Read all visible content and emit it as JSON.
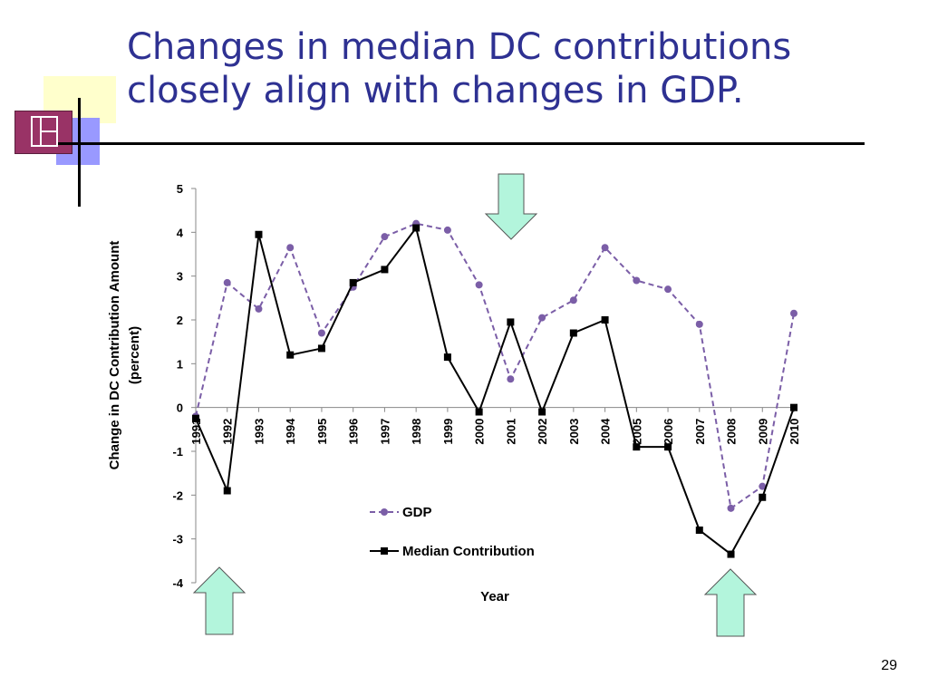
{
  "slide": {
    "title_lines": [
      "Changes in median DC contributions",
      "closely align with changes in GDP."
    ],
    "page_number": "29"
  },
  "colors": {
    "title": "#2e3192",
    "gdp_series": "#7b5ea7",
    "median_series": "#000000",
    "arrow_fill": "#b3f5dc",
    "deco_yellow": "#ffffcc",
    "deco_maroon": "#993366",
    "deco_blue": "#9999ff"
  },
  "chart_data": {
    "type": "line",
    "title": "",
    "xlabel": "Year",
    "ylabel_lines": [
      "Change in DC Contribution Amount",
      "(percent)"
    ],
    "ylim": [
      -4,
      5
    ],
    "yticks": [
      "5",
      "4",
      "3",
      "2",
      "1",
      "0",
      "-1",
      "-2",
      "-3",
      "-4"
    ],
    "grid": false,
    "legend_placement": "lower-center",
    "categories": [
      "1991",
      "1992",
      "1993",
      "1994",
      "1995",
      "1996",
      "1997",
      "1998",
      "1999",
      "2000",
      "2001",
      "2002",
      "2003",
      "2004",
      "2005",
      "2006",
      "2007",
      "2008",
      "2009",
      "2010"
    ],
    "series": [
      {
        "name": "GDP",
        "style": "dashed-circle",
        "values": [
          -0.2,
          2.85,
          2.25,
          3.65,
          1.7,
          2.75,
          3.9,
          4.2,
          4.05,
          2.8,
          0.65,
          2.05,
          2.45,
          3.65,
          2.9,
          2.7,
          1.9,
          -2.3,
          -1.8,
          2.15
        ]
      },
      {
        "name": "Median Contribution",
        "style": "solid-square",
        "values": [
          -0.25,
          -1.9,
          3.95,
          1.2,
          1.35,
          2.85,
          3.15,
          4.1,
          1.15,
          -0.1,
          1.95,
          -0.1,
          1.7,
          2.0,
          -0.9,
          -0.9,
          -2.8,
          -3.35,
          -2.05,
          0.0
        ]
      }
    ],
    "annotations": [
      "arrow-down-2001",
      "arrow-up-1992",
      "arrow-up-2008"
    ]
  }
}
